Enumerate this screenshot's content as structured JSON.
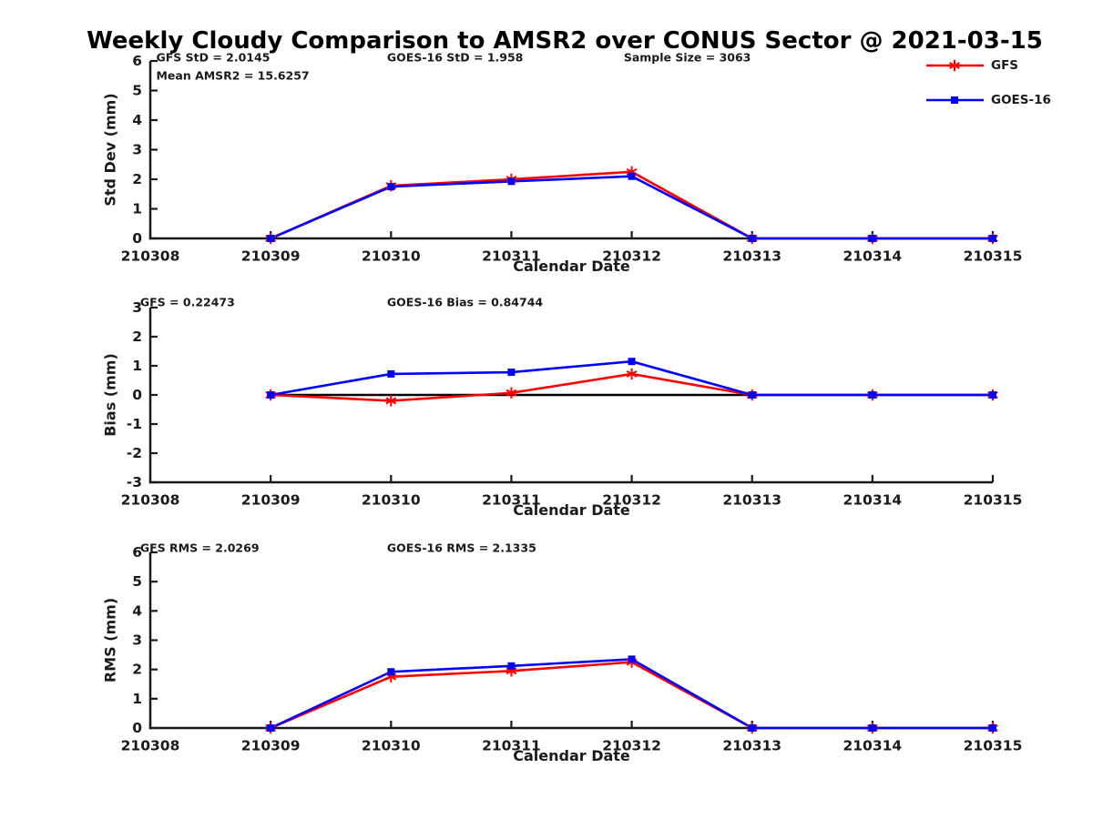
{
  "page": {
    "title": "Weekly Cloudy Comparison to AMSR2 over CONUS Sector @ 2021-03-15"
  },
  "colors": {
    "gfs": "#ff0000",
    "goes16": "#0000ff",
    "reference": "#000000",
    "axis": "#1a1a1a",
    "text": "#1a1a1a"
  },
  "legend": {
    "position": "top-right",
    "entries": [
      {
        "label": "GFS",
        "color": "#ff0000",
        "marker": "asterisk"
      },
      {
        "label": "GOES-16",
        "color": "#0000ff",
        "marker": "square"
      }
    ]
  },
  "chart_data": [
    {
      "id": "stddev",
      "type": "line",
      "ylabel": "Std Dev (mm)",
      "xlabel": "Calendar Date",
      "ylim": [
        0,
        6
      ],
      "yticks": [
        0,
        1,
        2,
        3,
        4,
        5,
        6
      ],
      "grid": false,
      "xtick_labels": [
        "210308",
        "210309",
        "210310",
        "210311",
        "210312",
        "210313",
        "210314",
        "210315"
      ],
      "x": [
        "210309",
        "210310",
        "210311",
        "210312",
        "210313",
        "210314",
        "210315"
      ],
      "series": [
        {
          "name": "GFS",
          "color": "#ff0000",
          "marker": "asterisk",
          "values": [
            0,
            1.78,
            2.0,
            2.25,
            0,
            0,
            0
          ]
        },
        {
          "name": "GOES-16",
          "color": "#0000ff",
          "marker": "square",
          "values": [
            0,
            1.75,
            1.93,
            2.1,
            0,
            0,
            0
          ]
        }
      ],
      "annotations": [
        {
          "text": "GFS StD = 2.0145",
          "fx": 0.007,
          "dy": -4
        },
        {
          "text": "Mean AMSR2 = 15.6257",
          "fx": 0.007,
          "dy": 16
        },
        {
          "text": "GOES-16 StD = 1.958",
          "fx": 0.281,
          "dy": -4
        },
        {
          "text": "Sample Size = 3063",
          "fx": 0.562,
          "dy": -4
        }
      ]
    },
    {
      "id": "bias",
      "type": "line",
      "ylabel": "Bias (mm)",
      "xlabel": "Calendar Date",
      "ylim": [
        -3,
        3
      ],
      "yticks": [
        -3,
        -2,
        -1,
        0,
        1,
        2,
        3
      ],
      "grid": false,
      "xtick_labels": [
        "210308",
        "210309",
        "210310",
        "210311",
        "210312",
        "210313",
        "210314",
        "210315"
      ],
      "x": [
        "210309",
        "210310",
        "210311",
        "210312",
        "210313",
        "210314",
        "210315"
      ],
      "series": [
        {
          "name": "zero-reference",
          "color": "#000000",
          "marker": "none",
          "values": [
            0,
            0,
            0,
            0,
            0,
            0,
            0
          ]
        },
        {
          "name": "GFS",
          "color": "#ff0000",
          "marker": "asterisk",
          "values": [
            0,
            -0.2,
            0.07,
            0.72,
            0,
            0,
            0
          ]
        },
        {
          "name": "GOES-16",
          "color": "#0000ff",
          "marker": "square",
          "values": [
            0,
            0.72,
            0.78,
            1.15,
            0,
            0,
            0
          ]
        }
      ],
      "annotations": [
        {
          "text": "GFS = 0.22473",
          "fx": -0.012,
          "dy": -6
        },
        {
          "text": "GOES-16 Bias  = 0.84744",
          "fx": 0.281,
          "dy": -6
        }
      ]
    },
    {
      "id": "rms",
      "type": "line",
      "ylabel": "RMS (mm)",
      "xlabel": "Calendar Date",
      "ylim": [
        0,
        6
      ],
      "yticks": [
        0,
        1,
        2,
        3,
        4,
        5,
        6
      ],
      "grid": false,
      "xtick_labels": [
        "210308",
        "210309",
        "210310",
        "210311",
        "210312",
        "210313",
        "210314",
        "210315"
      ],
      "x": [
        "210309",
        "210310",
        "210311",
        "210312",
        "210313",
        "210314",
        "210315"
      ],
      "series": [
        {
          "name": "GFS",
          "color": "#ff0000",
          "marker": "asterisk",
          "values": [
            0,
            1.75,
            1.95,
            2.25,
            0,
            0,
            0
          ]
        },
        {
          "name": "GOES-16",
          "color": "#0000ff",
          "marker": "square",
          "values": [
            0,
            1.92,
            2.12,
            2.35,
            0,
            0,
            0
          ]
        }
      ],
      "annotations": [
        {
          "text": "GFS RMS = 2.0269",
          "fx": -0.012,
          "dy": -5
        },
        {
          "text": "GOES-16 RMS = 2.1335",
          "fx": 0.281,
          "dy": -5
        }
      ]
    }
  ]
}
